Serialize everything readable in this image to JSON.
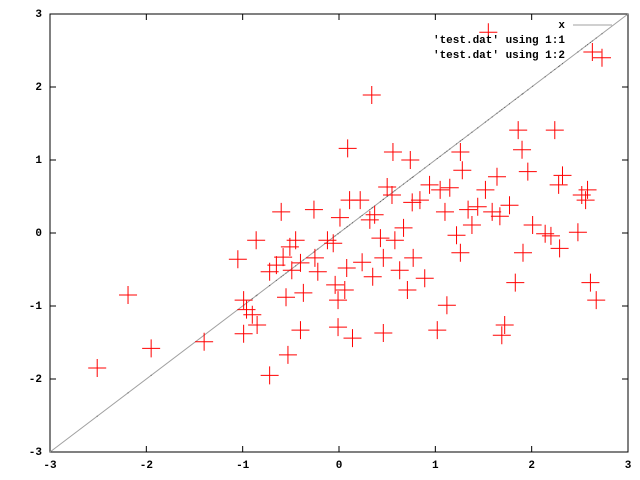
{
  "chart_data": {
    "type": "scatter",
    "xlim": [
      -3,
      3
    ],
    "ylim": [
      -3,
      3
    ],
    "xticks": [
      -3,
      -2,
      -1,
      0,
      1,
      2,
      3
    ],
    "yticks": [
      -3,
      -2,
      -1,
      0,
      1,
      2,
      3
    ],
    "legend": "upper-right",
    "x": [
      -2.51,
      -2.19,
      -1.95,
      -1.4,
      -1.05,
      -0.99,
      -0.96,
      -0.99,
      -0.9,
      -0.85,
      -0.86,
      -0.72,
      -0.6,
      -0.58,
      -0.55,
      -0.53,
      -0.72,
      -0.65,
      -0.51,
      -0.49,
      -0.45,
      -0.4,
      -0.37,
      -0.26,
      -0.25,
      -0.22,
      -0.4,
      -0.12,
      -0.06,
      -0.04,
      -0.01,
      -0.01,
      0.01,
      0.06,
      0.08,
      0.09,
      0.14,
      0.11,
      0.22,
      0.24,
      0.32,
      0.34,
      0.35,
      0.37,
      0.43,
      0.46,
      0.46,
      0.5,
      0.55,
      0.56,
      0.58,
      0.63,
      0.67,
      0.71,
      0.74,
      0.76,
      0.77,
      0.84,
      0.89,
      0.94,
      1.02,
      1.05,
      1.1,
      1.12,
      1.15,
      1.22,
      1.26,
      1.26,
      1.28,
      1.34,
      1.38,
      1.44,
      1.52,
      1.55,
      1.59,
      1.64,
      1.67,
      1.69,
      1.72,
      1.77,
      1.83,
      1.86,
      1.9,
      1.91,
      1.96,
      2.01,
      2.14,
      2.2,
      2.24,
      2.28,
      2.29,
      2.32,
      2.48,
      2.52,
      2.58,
      2.61,
      2.63,
      2.67,
      2.73,
      2.56
    ],
    "series": [
      {
        "name": "x",
        "style": "line",
        "color": "#a0a0a0",
        "x": [
          -3,
          3
        ],
        "values": [
          -3,
          3
        ]
      },
      {
        "name": "'test.dat' using 1:1",
        "style": "dots",
        "color": "#606060",
        "values": [
          -2.51,
          -2.19,
          -1.95,
          -1.4,
          -1.05,
          -0.99,
          -0.96,
          -0.99,
          -0.9,
          -0.85,
          -0.86,
          -0.72,
          -0.6,
          -0.58,
          -0.55,
          -0.53,
          -0.72,
          -0.65,
          -0.51,
          -0.49,
          -0.45,
          -0.4,
          -0.37,
          -0.26,
          -0.25,
          -0.22,
          -0.4,
          -0.12,
          -0.06,
          -0.04,
          -0.01,
          -0.01,
          0.01,
          0.06,
          0.08,
          0.09,
          0.14,
          0.11,
          0.22,
          0.24,
          0.32,
          0.34,
          0.35,
          0.37,
          0.43,
          0.46,
          0.46,
          0.5,
          0.55,
          0.56,
          0.58,
          0.63,
          0.67,
          0.71,
          0.74,
          0.76,
          0.77,
          0.84,
          0.89,
          0.94,
          1.02,
          1.05,
          1.1,
          1.12,
          1.15,
          1.22,
          1.26,
          1.26,
          1.28,
          1.34,
          1.38,
          1.44,
          1.52,
          1.55,
          1.59,
          1.64,
          1.67,
          1.69,
          1.72,
          1.77,
          1.83,
          1.86,
          1.9,
          1.91,
          1.96,
          2.01,
          2.14,
          2.2,
          2.24,
          2.28,
          2.29,
          2.32,
          2.48,
          2.52,
          2.58,
          2.61,
          2.63,
          2.67,
          2.73,
          2.56
        ]
      },
      {
        "name": "'test.dat' using 1:2",
        "style": "cross",
        "color": "#ff0000",
        "values": [
          -1.85,
          -0.85,
          -1.58,
          -1.49,
          -0.36,
          -0.92,
          -1.05,
          -1.38,
          -1.12,
          -1.26,
          -0.1,
          -1.95,
          0.29,
          -0.33,
          -0.88,
          -1.67,
          -0.53,
          -0.44,
          -0.19,
          -0.51,
          -0.1,
          -1.33,
          -0.82,
          0.32,
          -0.34,
          -0.53,
          -0.41,
          -0.1,
          -0.14,
          -0.71,
          -0.92,
          -1.29,
          0.21,
          -0.78,
          -0.48,
          1.16,
          -1.44,
          0.45,
          0.45,
          -0.4,
          0.18,
          1.89,
          -0.6,
          0.25,
          -0.07,
          -0.34,
          -1.37,
          0.63,
          0.52,
          1.11,
          -0.1,
          -0.51,
          0.07,
          -0.78,
          1.0,
          0.42,
          -0.34,
          0.45,
          -0.62,
          0.66,
          -1.33,
          0.59,
          0.29,
          -0.99,
          0.62,
          -0.03,
          1.11,
          -0.27,
          0.86,
          0.32,
          0.11,
          0.36,
          0.59,
          2.75,
          0.29,
          0.77,
          0.23,
          -1.4,
          -1.26,
          0.38,
          -0.68,
          1.41,
          1.14,
          -0.27,
          0.84,
          0.11,
          -0.01,
          -0.04,
          1.41,
          0.66,
          -0.21,
          0.79,
          0.01,
          0.52,
          0.59,
          -0.68,
          2.48,
          -0.92,
          2.4,
          0.45
        ]
      }
    ]
  }
}
